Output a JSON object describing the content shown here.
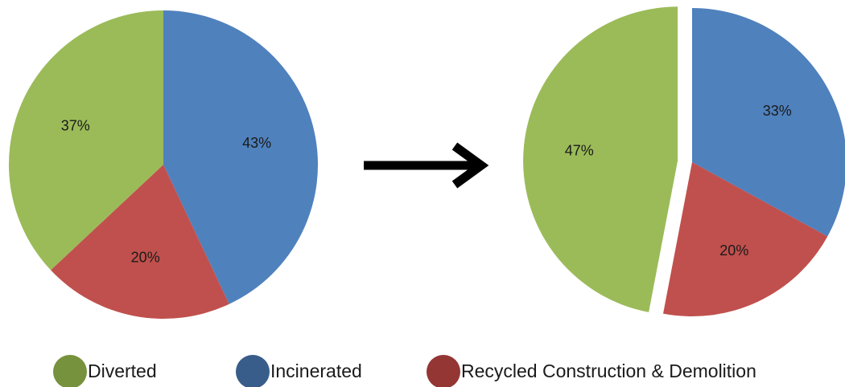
{
  "chart_data": [
    {
      "type": "pie",
      "title": "",
      "slices": [
        {
          "key": "incinerated",
          "label": "Incinerated",
          "value": 43,
          "value_label": "43%"
        },
        {
          "key": "recycled",
          "label": "Recycled Construction & Demolition",
          "value": 20,
          "value_label": "20%"
        },
        {
          "key": "diverted",
          "label": "Diverted",
          "value": 37,
          "value_label": "37%"
        }
      ]
    },
    {
      "type": "pie",
      "title": "",
      "exploded": "diverted",
      "slices": [
        {
          "key": "incinerated",
          "label": "Incinerated",
          "value": 33,
          "value_label": "33%"
        },
        {
          "key": "recycled",
          "label": "Recycled Construction & Demolition",
          "value": 20,
          "value_label": "20%"
        },
        {
          "key": "diverted",
          "label": "Diverted",
          "value": 47,
          "value_label": "47%"
        }
      ]
    }
  ],
  "legend": {
    "placement": "bottom",
    "items": [
      {
        "key": "diverted",
        "label": "Diverted"
      },
      {
        "key": "incinerated",
        "label": "Incinerated"
      },
      {
        "key": "recycled",
        "label": "Recycled Construction & Demolition"
      }
    ]
  },
  "colors": {
    "incinerated": "#4f81bd",
    "recycled": "#c0504d",
    "diverted": "#9bbb59",
    "legend_incinerated": "#385d8a",
    "legend_recycled": "#943634",
    "legend_diverted": "#76923c",
    "arrow": "#000000"
  },
  "arrow": {
    "direction": "right"
  }
}
